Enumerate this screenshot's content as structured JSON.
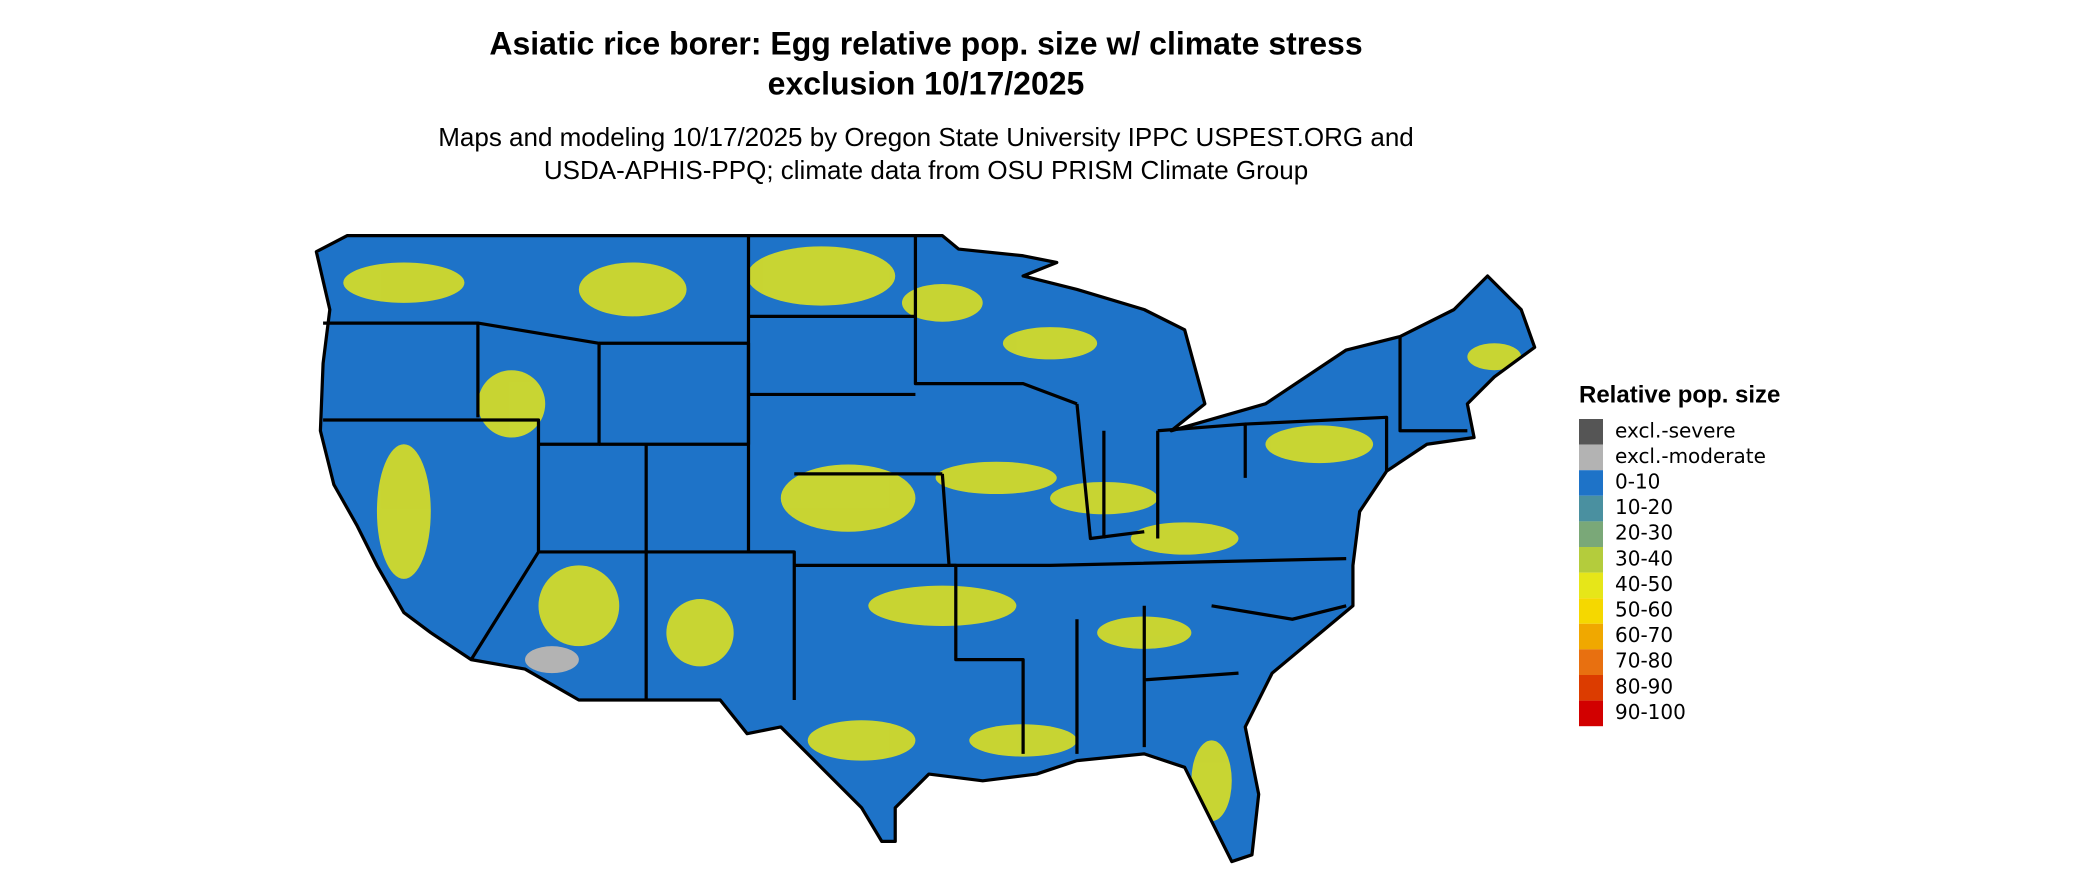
{
  "title_lines": [
    "Asiatic rice borer: Egg relative pop. size w/ climate stress",
    "exclusion 10/17/2025"
  ],
  "subtitle_lines": [
    "Maps and modeling 10/17/2025 by Oregon State University IPPC USPEST.ORG and",
    "USDA-APHIS-PPQ; climate data from OSU PRISM Climate Group"
  ],
  "legend": {
    "title": "Relative pop. size",
    "items": [
      {
        "label": "excl.-severe",
        "color": "#555555"
      },
      {
        "label": "excl.-moderate",
        "color": "#b3b3b3"
      },
      {
        "label": "0-10",
        "color": "#1e73c8"
      },
      {
        "label": "10-20",
        "color": "#4a90a0"
      },
      {
        "label": "20-30",
        "color": "#7aa878"
      },
      {
        "label": "30-40",
        "color": "#b4cc3c"
      },
      {
        "label": "40-50",
        "color": "#e6e619"
      },
      {
        "label": "50-60",
        "color": "#f5d800"
      },
      {
        "label": "60-70",
        "color": "#f0a800"
      },
      {
        "label": "70-80",
        "color": "#e87010"
      },
      {
        "label": "80-90",
        "color": "#dc3c00"
      },
      {
        "label": "90-100",
        "color": "#d20000"
      }
    ]
  }
}
